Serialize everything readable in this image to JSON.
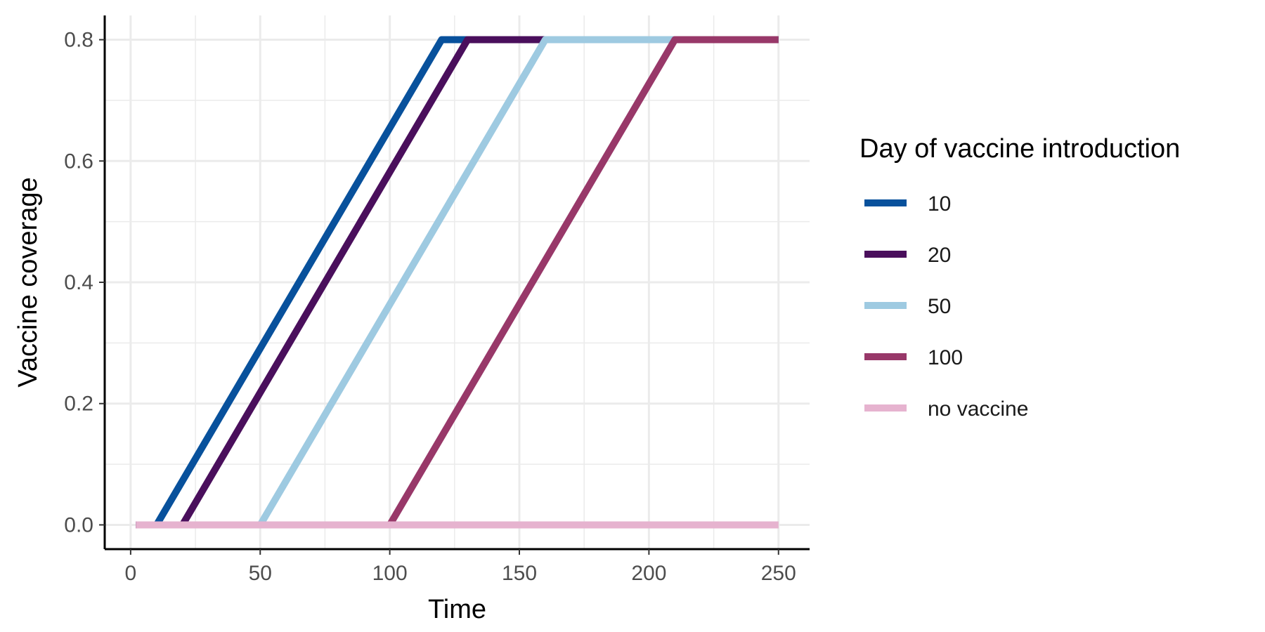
{
  "chart_data": {
    "type": "line",
    "xlabel": "Time",
    "ylabel": "Vaccine coverage",
    "xlim": [
      -10,
      262
    ],
    "ylim": [
      -0.04,
      0.84
    ],
    "x_ticks": [
      0,
      50,
      100,
      150,
      200,
      250
    ],
    "x_tick_labels": [
      "0",
      "50",
      "100",
      "150",
      "200",
      "250"
    ],
    "y_ticks": [
      0.0,
      0.2,
      0.4,
      0.6,
      0.8
    ],
    "y_tick_labels": [
      "0.0",
      "0.2",
      "0.4",
      "0.6",
      "0.8"
    ],
    "grid": true,
    "legend": {
      "title": "Day of vaccine introduction",
      "placement": "right"
    },
    "series": [
      {
        "name": "10",
        "color": "#08519c",
        "x": [
          2,
          10,
          120,
          250
        ],
        "y": [
          0,
          0,
          0.8,
          0.8
        ]
      },
      {
        "name": "20",
        "color": "#4a0f5c",
        "x": [
          2,
          20,
          130,
          250
        ],
        "y": [
          0,
          0,
          0.8,
          0.8
        ]
      },
      {
        "name": "50",
        "color": "#9ecae1",
        "x": [
          2,
          50,
          160,
          250
        ],
        "y": [
          0,
          0,
          0.8,
          0.8
        ]
      },
      {
        "name": "100",
        "color": "#983869",
        "x": [
          2,
          100,
          210,
          250
        ],
        "y": [
          0,
          0,
          0.8,
          0.8
        ]
      },
      {
        "name": "no vaccine",
        "color": "#e6b3cf",
        "x": [
          2,
          250
        ],
        "y": [
          0,
          0
        ]
      }
    ]
  }
}
